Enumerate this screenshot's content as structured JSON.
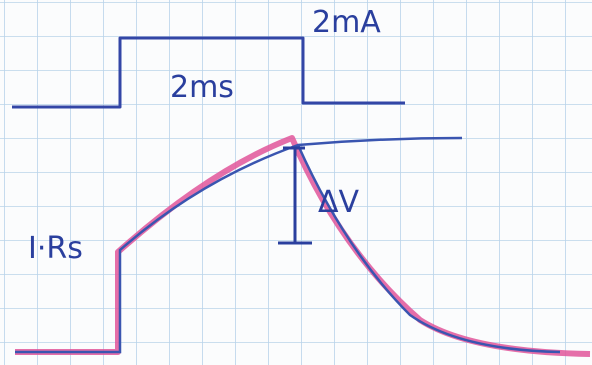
{
  "labels": {
    "current": "2mA",
    "duration": "2ms",
    "series_resistance": "I·Rs",
    "delta_v": "ΔV"
  }
}
